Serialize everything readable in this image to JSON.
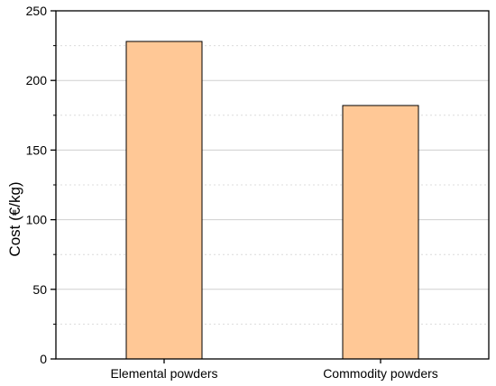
{
  "chart_data": {
    "type": "bar",
    "categories": [
      "Elemental powders",
      "Commodity powders"
    ],
    "values": [
      228,
      182
    ],
    "xlabel": "",
    "ylabel": "Cost (€/kg)",
    "ylim": [
      0,
      250
    ],
    "yticks": [
      0,
      50,
      100,
      150,
      200,
      250
    ],
    "grid": true,
    "bar_color": "#FFC896",
    "bar_edge_color": "#000000"
  }
}
